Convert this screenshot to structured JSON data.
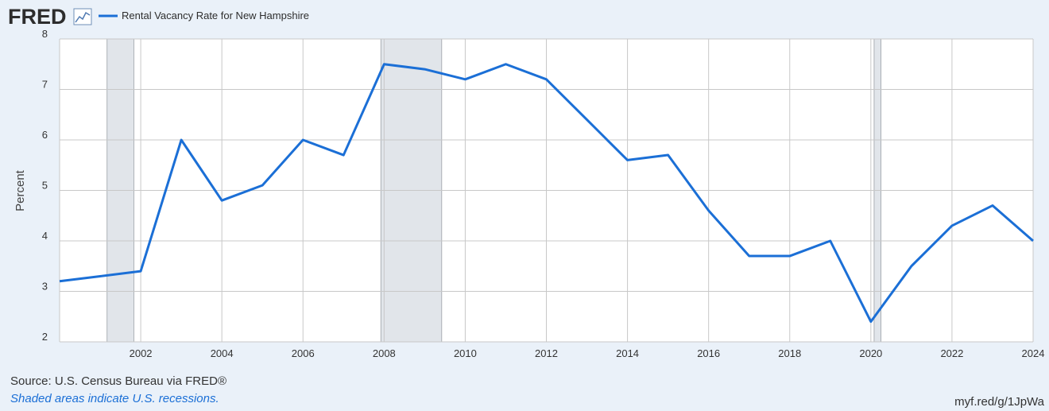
{
  "logo": "FRED",
  "chart_data": {
    "type": "line",
    "x": [
      2000,
      2001,
      2002,
      2003,
      2004,
      2005,
      2006,
      2007,
      2008,
      2009,
      2010,
      2011,
      2012,
      2013,
      2014,
      2015,
      2016,
      2017,
      2018,
      2019,
      2020,
      2021,
      2022,
      2023,
      2024
    ],
    "series": [
      {
        "name": "Rental Vacancy Rate for New Hampshire",
        "color": "#1b6fd6",
        "values": [
          3.2,
          3.3,
          3.4,
          6.0,
          4.8,
          5.1,
          6.0,
          5.7,
          7.5,
          7.4,
          7.2,
          7.5,
          7.2,
          6.4,
          5.6,
          5.7,
          4.6,
          3.7,
          3.7,
          4.0,
          2.4,
          3.5,
          4.3,
          4.7,
          4.0
        ]
      }
    ],
    "recessions": [
      [
        2001.17,
        2001.83
      ],
      [
        2007.92,
        2009.42
      ],
      [
        2020.08,
        2020.25
      ]
    ],
    "xlim": [
      2000,
      2024
    ],
    "xticks": [
      2002,
      2004,
      2006,
      2008,
      2010,
      2012,
      2014,
      2016,
      2018,
      2020,
      2022,
      2024
    ],
    "ylim": [
      2,
      8
    ],
    "yticks": [
      2,
      3,
      4,
      5,
      6,
      7,
      8
    ],
    "ylabel": "Percent",
    "grid": true,
    "source": "Source: U.S. Census Bureau via FRED®",
    "note": "Shaded areas indicate U.S. recessions.",
    "url": "myf.red/g/1JpWa"
  }
}
